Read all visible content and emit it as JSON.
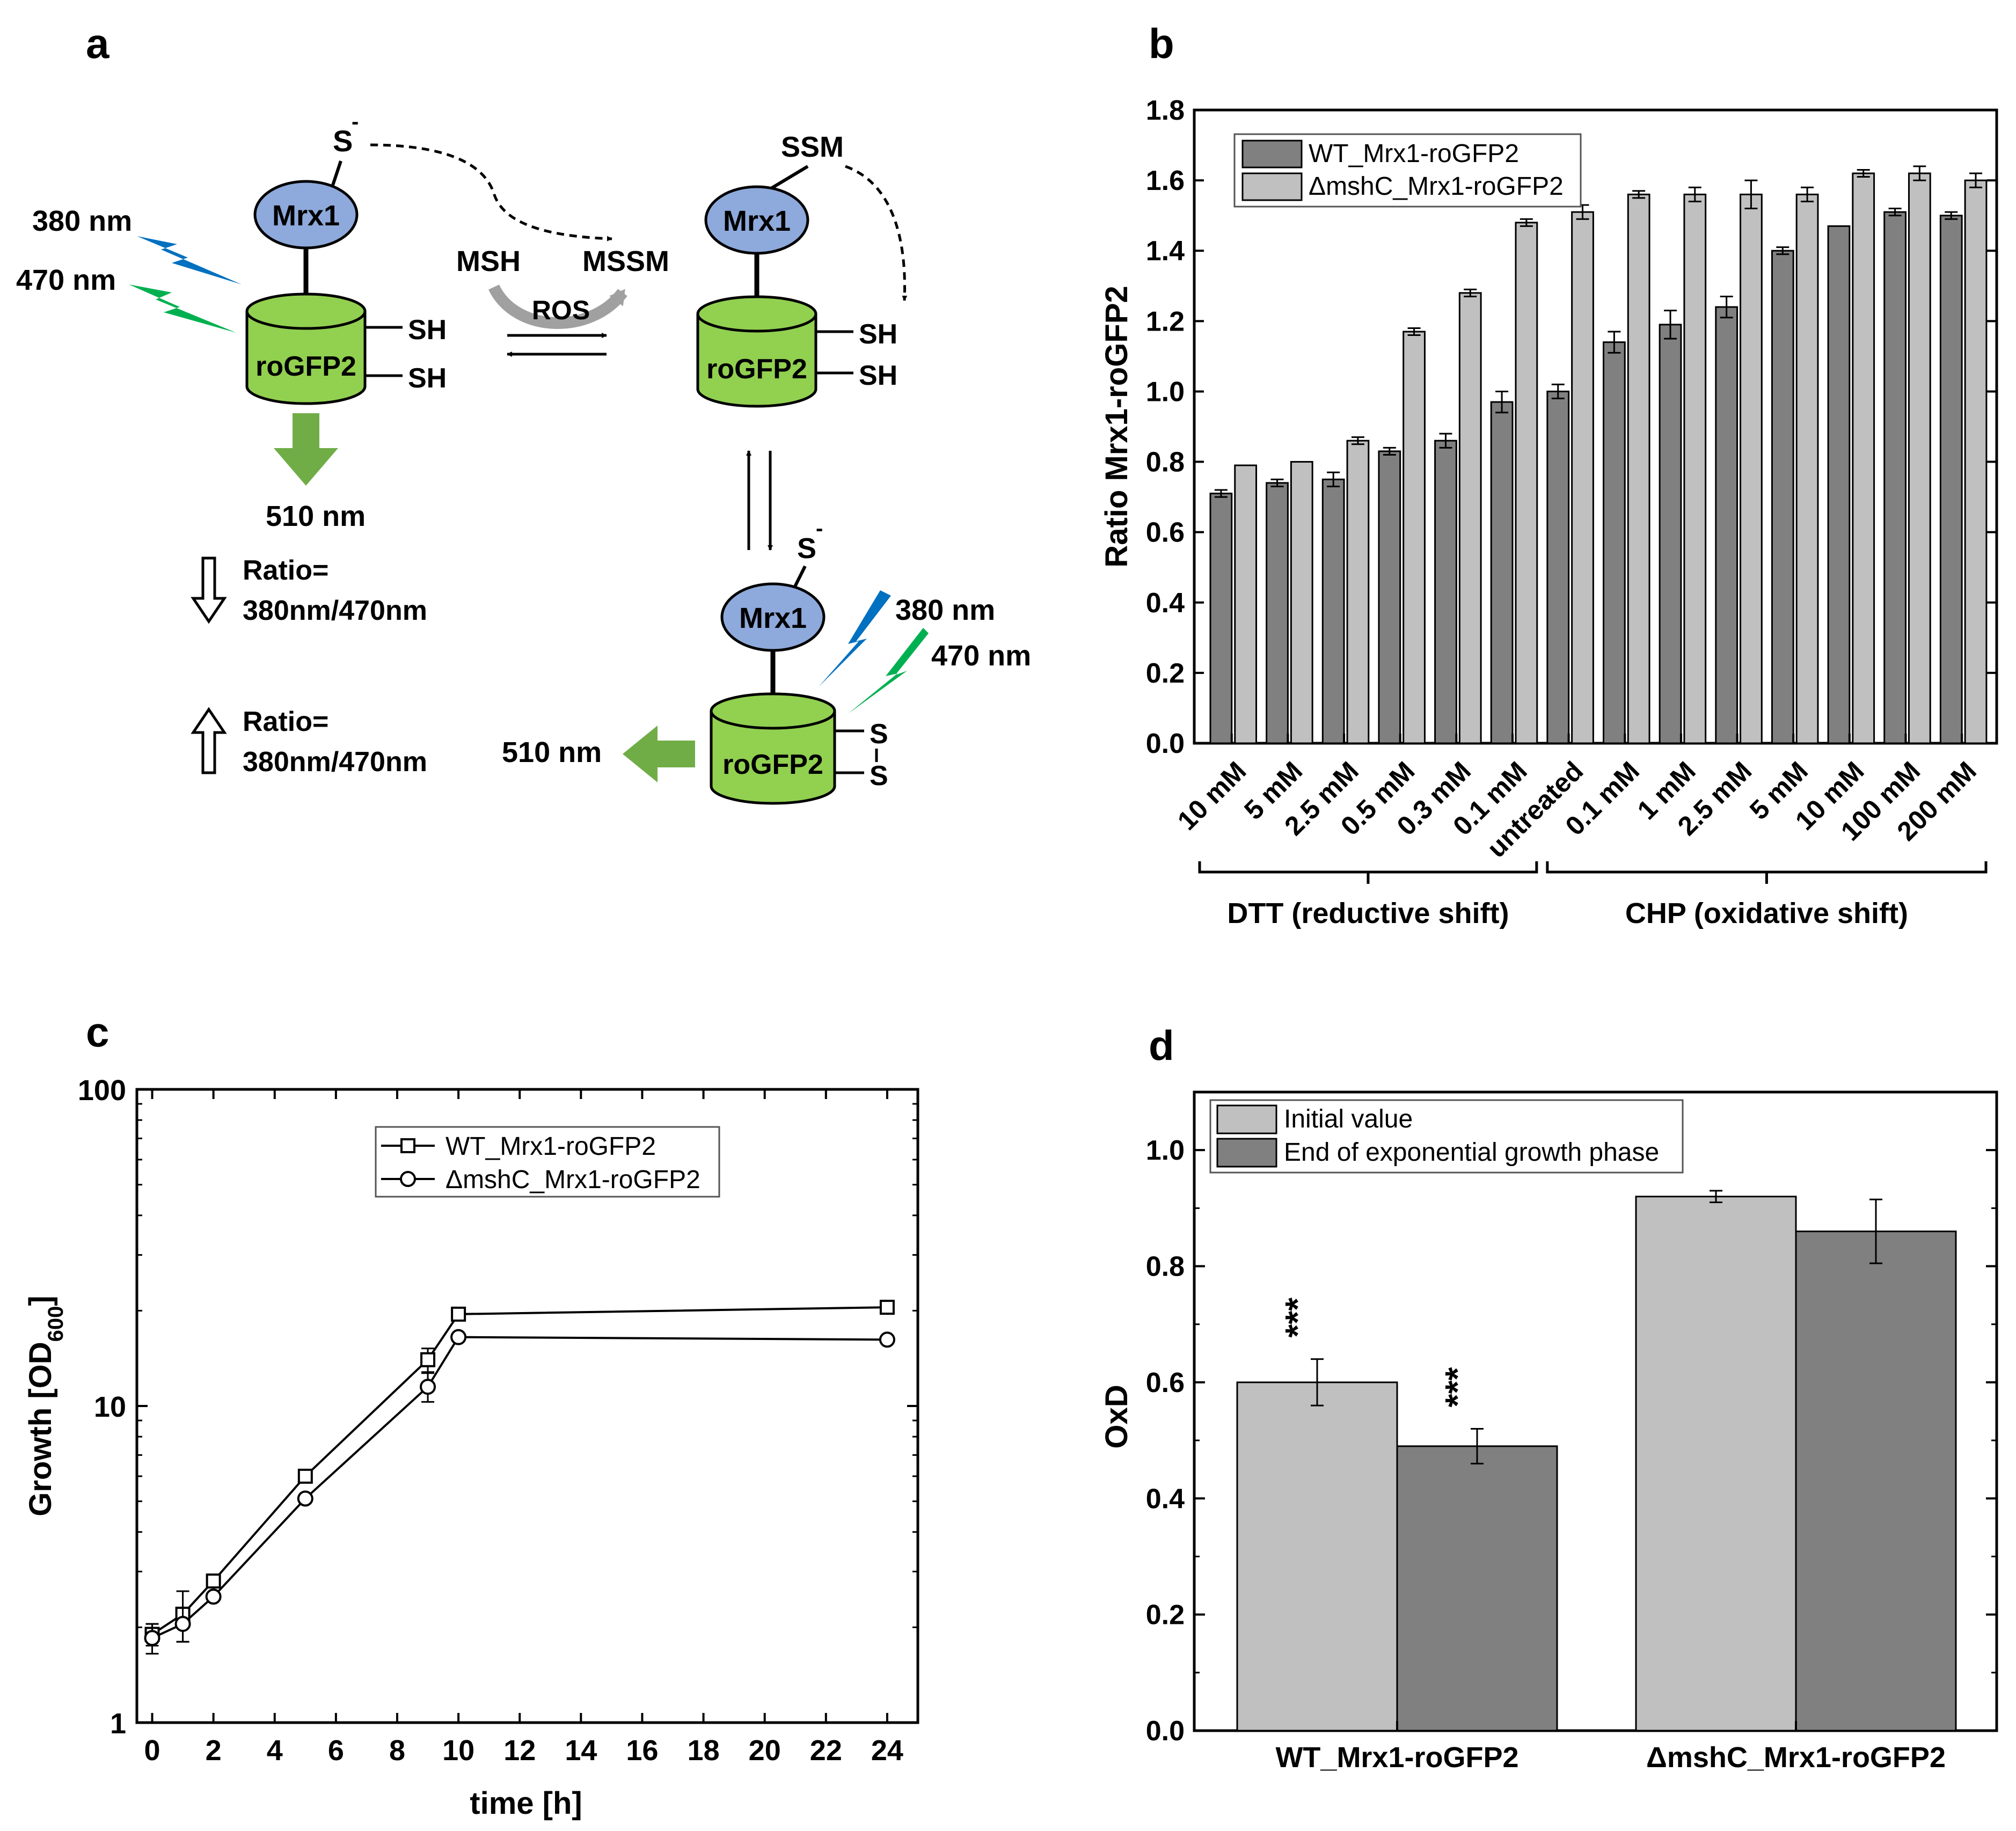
{
  "panel_a": {
    "letter": "a",
    "s_minus": "S",
    "mrx1": "Mrx1",
    "rogfp2": "roGFP2",
    "sh": "SH",
    "s": "S",
    "ssm": "SSM",
    "msh": "MSH",
    "mssm": "MSSM",
    "ros": "ROS",
    "wl_380": "380 nm",
    "wl_470": "470 nm",
    "wl_510": "510 nm",
    "ratio_label": "Ratio=",
    "ratio_formula": "380nm/470nm",
    "colors": {
      "mrx1": "#8ea9db",
      "rogfp2": "#92d050",
      "blue_bolt": "#0070c0",
      "green_bolt": "#00b050",
      "arrow": "#70ad47"
    }
  },
  "chart_data": [
    {
      "panel": "b",
      "type": "bar",
      "title": "",
      "ylabel": "Ratio Mrx1-roGFP2",
      "ylim": [
        0,
        1.8
      ],
      "yticks": [
        "0.0",
        "0.2",
        "0.4",
        "0.6",
        "0.8",
        "1.0",
        "1.2",
        "1.4",
        "1.6",
        "1.8"
      ],
      "categories": [
        "10 mM",
        "5 mM",
        "2.5 mM",
        "0.5 mM",
        "0.3 mM",
        "0.1 mM",
        "untreated",
        "0.1 mM",
        "1 mM",
        "2.5 mM",
        "5 mM",
        "10 mM",
        "100 mM",
        "200 mM"
      ],
      "series": [
        {
          "name": "WT_Mrx1-roGFP2",
          "color": "#808080",
          "values": [
            0.71,
            0.74,
            0.75,
            0.83,
            0.86,
            0.97,
            1.0,
            1.14,
            1.19,
            1.24,
            1.4,
            1.47,
            1.51,
            1.5
          ],
          "errors": [
            0.01,
            0.01,
            0.02,
            0.01,
            0.02,
            0.03,
            0.02,
            0.03,
            0.04,
            0.03,
            0.01,
            0.0,
            0.01,
            0.01
          ]
        },
        {
          "name": "ΔmshC_Mrx1-roGFP2",
          "color": "#c0c0c0",
          "values": [
            0.79,
            0.8,
            0.86,
            1.17,
            1.28,
            1.48,
            1.51,
            1.56,
            1.56,
            1.56,
            1.56,
            1.62,
            1.62,
            1.6
          ],
          "errors": [
            0.0,
            0.0,
            0.01,
            0.01,
            0.01,
            0.01,
            0.02,
            0.01,
            0.02,
            0.04,
            0.02,
            0.01,
            0.02,
            0.02
          ]
        }
      ],
      "groups": [
        {
          "label": "DTT (reductive shift)",
          "from": 0,
          "to": 5
        },
        {
          "label": "CHP (oxidative shift)",
          "from": 6,
          "to": 13
        }
      ],
      "legend": "top-left"
    },
    {
      "panel": "c",
      "type": "line",
      "title": "",
      "xlabel": "time [h]",
      "ylabel": "Growth [OD",
      "ylabel_sub": "600",
      "ylabel_end": "]",
      "yscale": "log",
      "ylim": [
        1,
        100
      ],
      "xlim": [
        -0.5,
        25
      ],
      "xticks": [
        0,
        2,
        4,
        6,
        8,
        10,
        12,
        14,
        16,
        18,
        20,
        22,
        24
      ],
      "yticks": [
        1,
        10,
        100
      ],
      "series": [
        {
          "name": "WT_Mrx1-roGFP2",
          "marker": "square",
          "x": [
            0,
            1,
            2,
            5,
            9,
            10,
            24
          ],
          "y": [
            1.9,
            2.2,
            2.8,
            6.0,
            14.0,
            19.5,
            20.5
          ],
          "err": [
            0.15,
            0.4,
            0.0,
            0.0,
            1.2,
            0.0,
            0.0
          ]
        },
        {
          "name": "ΔmshC_Mrx1-roGFP2",
          "marker": "circle",
          "x": [
            0,
            1,
            2,
            5,
            9,
            10,
            24
          ],
          "y": [
            1.85,
            2.05,
            2.5,
            5.1,
            11.5,
            16.5,
            16.2
          ],
          "err": [
            0.2,
            0.25,
            0.0,
            0.0,
            1.2,
            0.0,
            0.0
          ]
        }
      ],
      "legend": "top-center"
    },
    {
      "panel": "d",
      "type": "bar",
      "title": "",
      "ylabel": "OxD",
      "ylim": [
        0,
        1.1
      ],
      "yticks": [
        "0.0",
        "0.2",
        "0.4",
        "0.6",
        "0.8",
        "1.0"
      ],
      "categories": [
        "WT_Mrx1-roGFP2",
        "ΔmshC_Mrx1-roGFP2"
      ],
      "series": [
        {
          "name": "Initial value",
          "color": "#c0c0c0",
          "values": [
            0.6,
            0.92
          ],
          "errors": [
            0.04,
            0.01
          ]
        },
        {
          "name": "End of exponential growth phase",
          "color": "#808080",
          "values": [
            0.49,
            0.86
          ],
          "errors": [
            0.03,
            0.055
          ]
        }
      ],
      "annotations": [
        {
          "text": "***",
          "category": 0,
          "series": 0
        },
        {
          "text": "***",
          "category": 0,
          "series": 1
        }
      ],
      "legend": "top-left"
    }
  ]
}
